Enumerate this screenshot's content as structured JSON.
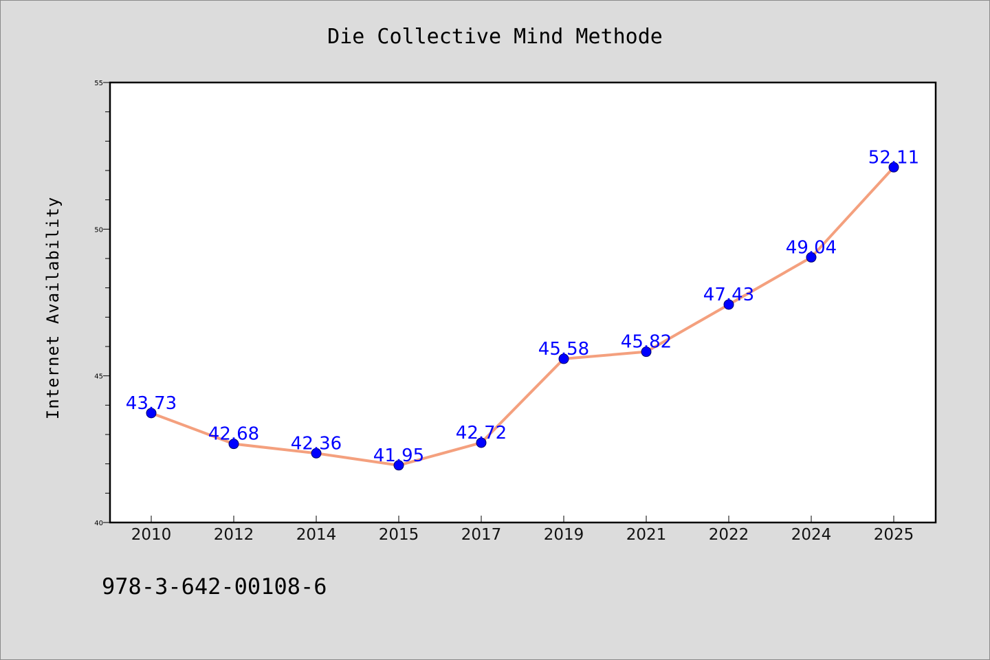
{
  "chart_data": {
    "type": "line",
    "title": "Die Collective Mind Methode",
    "ylabel": "Internet Availability",
    "xlabel": "",
    "categories": [
      "2010",
      "2012",
      "2014",
      "2015",
      "2017",
      "2019",
      "2021",
      "2022",
      "2024",
      "2025"
    ],
    "series": [
      {
        "values": [
          43.73,
          42.68,
          42.36,
          41.95,
          42.72,
          45.58,
          45.82,
          47.43,
          49.04,
          52.11
        ],
        "labels": [
          "43.73",
          "42.68",
          "42.36",
          "41.95",
          "42.72",
          "45.58",
          "45.82",
          "47.43",
          "49.04",
          "52.11"
        ]
      }
    ],
    "ylim": [
      40,
      55
    ],
    "yticks": [
      "40",
      "45",
      "50",
      "55"
    ],
    "y_minor_step": 1,
    "grid": false,
    "line_color": "#f4a07e",
    "marker_color": "#0000ff",
    "label_color": "#0000ff"
  },
  "footer": {
    "isbn": "978-3-642-00108-6"
  }
}
